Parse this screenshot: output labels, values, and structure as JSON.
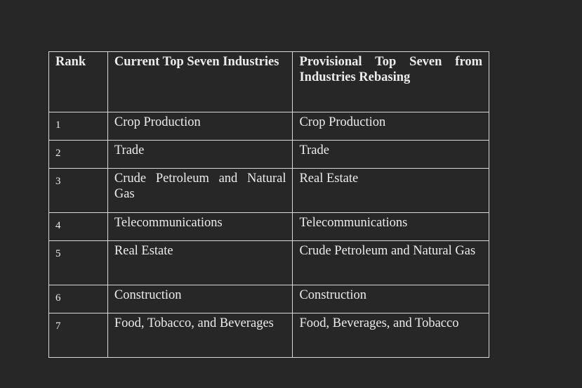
{
  "table": {
    "header": [
      "Rank",
      "Current Top Seven Industries",
      "Provisional Top Seven from Industries Rebasing"
    ],
    "rows": [
      [
        "1",
        "Crop Production",
        "Crop Production"
      ],
      [
        "2",
        "Trade",
        "Trade"
      ],
      [
        "3",
        "Crude Petroleum and Natural Gas",
        "Real Estate"
      ],
      [
        "4",
        "Telecommunications",
        "Telecommunications"
      ],
      [
        "5",
        "Real Estate",
        "Crude Petroleum and Natural Gas"
      ],
      [
        "6",
        "Construction",
        "Construction"
      ],
      [
        "7",
        "Food, Tobacco, and Beverages",
        "Food, Beverages, and Tobacco"
      ]
    ]
  }
}
